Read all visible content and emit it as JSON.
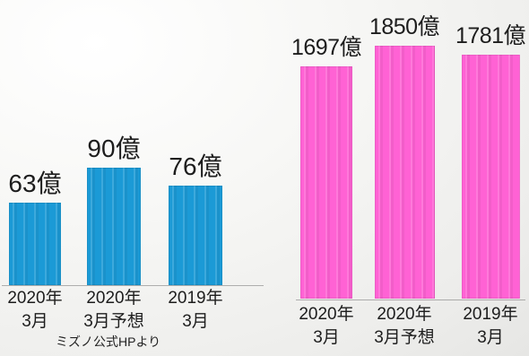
{
  "source_note": "ミズノ公式HPより",
  "chart_data": [
    {
      "type": "bar",
      "categories": [
        "2020年\n3月",
        "2020年\n3月予想",
        "2019年\n3月"
      ],
      "values": [
        63,
        90,
        76
      ],
      "data_labels": [
        "63億",
        "90億",
        "76億"
      ],
      "color": "#1b9ad6",
      "grid": false,
      "legend": false
    },
    {
      "type": "bar",
      "categories": [
        "2020年\n3月",
        "2020年\n3月予想",
        "2019年\n3月"
      ],
      "values": [
        1697,
        1850,
        1781
      ],
      "data_labels": [
        "1697億",
        "1850億",
        "1781億"
      ],
      "color": "#ff62d4",
      "grid": false,
      "legend": false
    }
  ]
}
